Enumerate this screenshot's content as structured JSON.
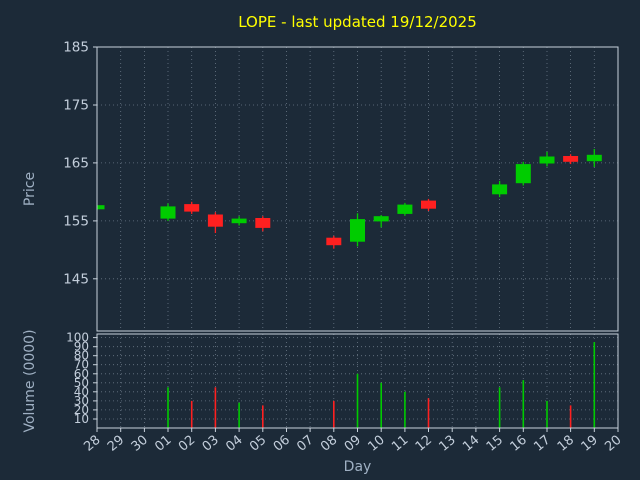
{
  "title": "LOPE - last updated 19/12/2025",
  "colors": {
    "background": "#1c2a38",
    "title": "#ffff00",
    "tick_label": "#c3cedb",
    "axis_title": "#9fb0c3",
    "grid": "#8a98a8",
    "frame": "#c8d2dc",
    "up": "#00cc00",
    "down": "#ff2020"
  },
  "chart_data": {
    "type": "candlestick-with-volume",
    "title": "LOPE - last updated 19/12/2025",
    "xlabel": "Day",
    "categories": [
      "28",
      "29",
      "30",
      "01",
      "02",
      "03",
      "04",
      "05",
      "06",
      "07",
      "08",
      "09",
      "10",
      "11",
      "12",
      "13",
      "14",
      "15",
      "16",
      "17",
      "18",
      "19",
      "20"
    ],
    "up_color": "#00cc00",
    "down_color": "#ff2020",
    "grid": true,
    "price": {
      "ylabel": "Price",
      "ylim": [
        136,
        185
      ],
      "yticks": [
        145,
        155,
        165,
        175,
        185
      ],
      "ohlc": [
        [
          157.0,
          157.7,
          156.8,
          157.7
        ],
        null,
        null,
        [
          155.4,
          158.0,
          155.0,
          157.5
        ],
        [
          157.9,
          158.3,
          156.2,
          156.6
        ],
        [
          156.1,
          156.5,
          152.9,
          154.0
        ],
        [
          154.6,
          155.8,
          154.2,
          155.4
        ],
        [
          155.5,
          155.8,
          153.2,
          153.8
        ],
        null,
        null,
        [
          152.1,
          152.4,
          150.2,
          150.8
        ],
        [
          151.4,
          156.3,
          150.6,
          155.3
        ],
        [
          154.9,
          156.0,
          153.9,
          155.8
        ],
        [
          156.2,
          158.1,
          155.9,
          157.8
        ],
        [
          158.5,
          158.8,
          156.7,
          157.1
        ],
        null,
        null,
        [
          159.6,
          161.9,
          159.1,
          161.3
        ],
        [
          161.5,
          165.2,
          161.1,
          164.8
        ],
        [
          164.9,
          166.9,
          164.4,
          166.1
        ],
        [
          166.2,
          166.5,
          164.8,
          165.2
        ],
        [
          165.3,
          167.4,
          164.3,
          166.4
        ],
        null
      ]
    },
    "volume": {
      "ylabel": "Volume (0000)",
      "ylim": [
        0,
        104
      ],
      "yticks": [
        10,
        20,
        30,
        40,
        50,
        60,
        70,
        80,
        90,
        100
      ],
      "values": [
        null,
        null,
        null,
        45,
        30,
        45,
        28,
        25,
        null,
        null,
        30,
        60,
        50,
        40,
        33,
        null,
        null,
        45,
        53,
        30,
        25,
        95,
        null
      ]
    }
  }
}
